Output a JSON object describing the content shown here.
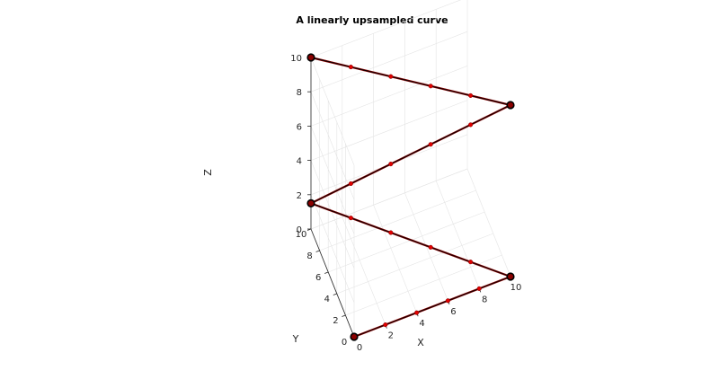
{
  "chart_data": {
    "type": "line3d",
    "title": "A linearly upsampled curve",
    "xlabel": "X",
    "ylabel": "Y",
    "zlabel": "Z",
    "xlim": [
      0,
      10
    ],
    "ylim": [
      0,
      10
    ],
    "zlim": [
      0,
      10
    ],
    "xticks": [
      "0",
      "2",
      "4",
      "6",
      "8",
      "10"
    ],
    "yticks": [
      "0",
      "2",
      "4",
      "6",
      "8",
      "10"
    ],
    "zticks": [
      "0",
      "2",
      "4",
      "6",
      "8",
      "10"
    ],
    "grid": true,
    "series": [
      {
        "role": "control-points",
        "marker": "circle",
        "color": "#8b0000",
        "edge_color": "#000000",
        "points": [
          {
            "x": 0,
            "y": 0,
            "z": 0
          },
          {
            "x": 10,
            "y": 0,
            "z": 0
          },
          {
            "x": 0,
            "y": 10,
            "z": 1.5
          },
          {
            "x": 10,
            "y": 0,
            "z": 10
          },
          {
            "x": 0,
            "y": 10,
            "z": 10
          }
        ]
      },
      {
        "role": "upsampled-curve",
        "marker": "dot",
        "color": "#e00000",
        "line_color": "#000000",
        "points_per_segment": 5
      }
    ]
  }
}
